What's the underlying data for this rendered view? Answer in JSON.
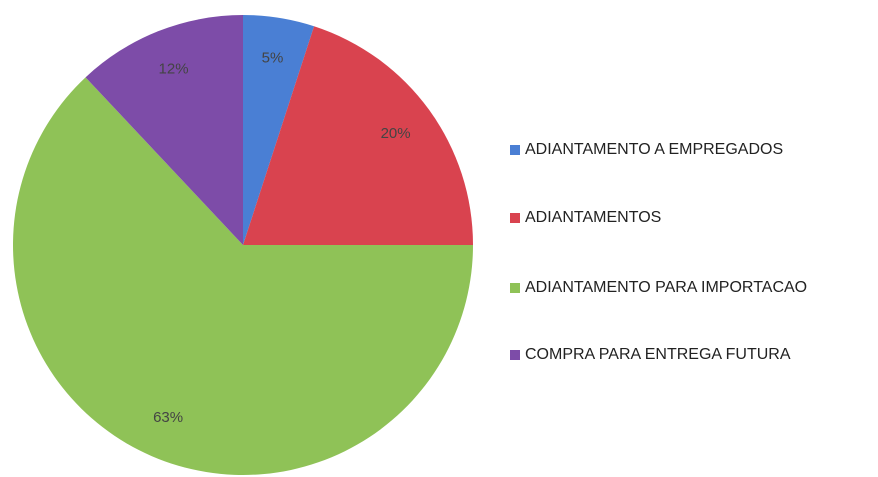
{
  "chart_data": {
    "type": "pie",
    "categories": [
      "ADIANTAMENTO A EMPREGADOS",
      "ADIANTAMENTOS",
      "ADIANTAMENTO PARA IMPORTACAO",
      "COMPRA PARA ENTREGA FUTURA"
    ],
    "values": [
      5,
      20,
      63,
      12
    ],
    "value_labels": [
      "5%",
      "20%",
      "63%",
      "12%"
    ],
    "colors": [
      "#4a7fd4",
      "#d9434f",
      "#8fc257",
      "#7d4ca8"
    ],
    "legend": "right"
  }
}
